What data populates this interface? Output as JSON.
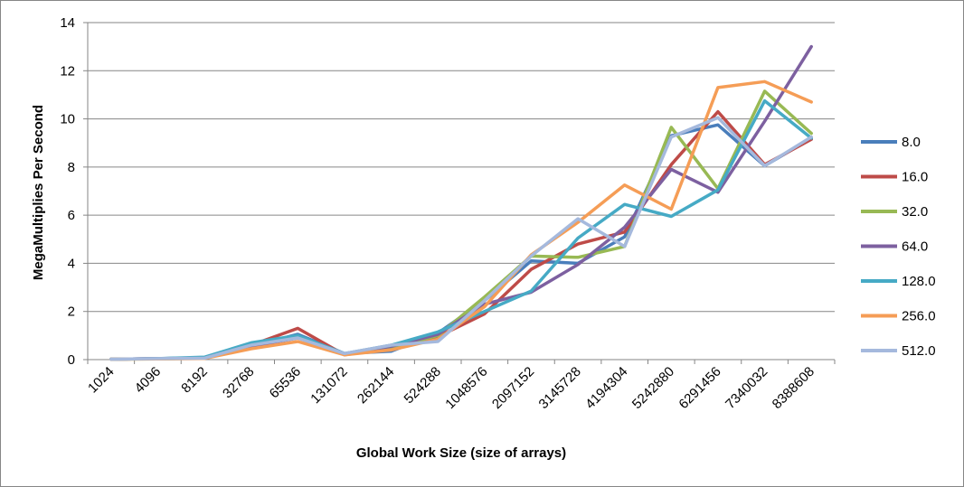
{
  "chart_data": {
    "type": "line",
    "title": "",
    "xlabel": "Global Work Size (size of arrays)",
    "ylabel": "MegaMultiplies Per Second",
    "ylim": [
      0,
      14
    ],
    "yticks": [
      0,
      2,
      4,
      6,
      8,
      10,
      12,
      14
    ],
    "grid": true,
    "legend_position": "right",
    "categories": [
      "1024",
      "4096",
      "8192",
      "32768",
      "65536",
      "131072",
      "262144",
      "524288",
      "1048576",
      "2097152",
      "3145728",
      "4194304",
      "5242880",
      "6291456",
      "7340032",
      "8388608"
    ],
    "series": [
      {
        "name": "8.0",
        "color": "#4a7ebb",
        "values": [
          0.02,
          0.04,
          0.08,
          0.55,
          1.05,
          0.25,
          0.35,
          1.1,
          2.45,
          4.1,
          4.0,
          5.1,
          9.3,
          9.75,
          8.05,
          9.2
        ]
      },
      {
        "name": "16.0",
        "color": "#be4b48",
        "values": [
          0.02,
          0.04,
          0.05,
          0.6,
          1.3,
          0.2,
          0.45,
          0.95,
          1.9,
          3.75,
          4.8,
          5.3,
          8.1,
          10.3,
          8.1,
          9.15
        ]
      },
      {
        "name": "32.0",
        "color": "#98b954",
        "values": [
          0.02,
          0.03,
          0.06,
          0.6,
          0.95,
          0.22,
          0.5,
          1.0,
          2.6,
          4.3,
          4.25,
          4.7,
          9.65,
          7.1,
          11.15,
          9.4
        ]
      },
      {
        "name": "64.0",
        "color": "#7d60a0",
        "values": [
          0.02,
          0.04,
          0.07,
          0.55,
          0.9,
          0.25,
          0.55,
          1.05,
          2.3,
          2.8,
          3.95,
          5.5,
          7.9,
          6.95,
          9.9,
          13.0
        ]
      },
      {
        "name": "128.0",
        "color": "#46aac5",
        "values": [
          0.02,
          0.04,
          0.1,
          0.7,
          1.0,
          0.25,
          0.6,
          1.15,
          2.0,
          2.85,
          5.05,
          6.45,
          5.95,
          7.05,
          10.75,
          9.2
        ]
      },
      {
        "name": "256.0",
        "color": "#f59d56",
        "values": [
          0.02,
          0.03,
          0.05,
          0.45,
          0.75,
          0.2,
          0.4,
          0.85,
          2.2,
          4.35,
          5.7,
          7.25,
          6.25,
          11.3,
          11.55,
          10.7
        ]
      },
      {
        "name": "512.0",
        "color": "#a5b9dd",
        "values": [
          0.02,
          0.04,
          0.06,
          0.6,
          0.9,
          0.25,
          0.6,
          0.75,
          2.45,
          4.3,
          5.85,
          4.7,
          9.25,
          10.05,
          8.05,
          9.25
        ]
      }
    ]
  }
}
